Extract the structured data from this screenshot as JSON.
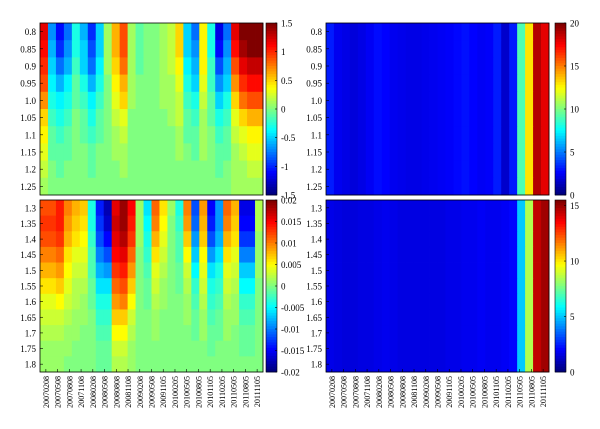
{
  "chart_data": [
    {
      "type": "heatmap",
      "panel": "top-left",
      "y_labels": [
        "0.8",
        "0.85",
        "0.9",
        "0.95",
        "1.0",
        "1.05",
        "1.1",
        "1.15",
        "1.2",
        "1.25"
      ],
      "x_labels": [],
      "colorbar": {
        "min": -1.5,
        "max": 1.5,
        "ticks": [
          "1.5",
          "1",
          "0.5",
          "0",
          "-0.5",
          "-1",
          "-1.5"
        ]
      },
      "colormap": "jet",
      "values": [
        [
          1.2,
          -0.7,
          -1.1,
          -0.8,
          -0.3,
          -0.6,
          -1.0,
          -0.5,
          0.1,
          0.6,
          0.9,
          0.1,
          -0.1,
          0.0,
          0.0,
          0.1,
          0.2,
          0.5,
          -0.5,
          -0.8,
          0.4,
          -0.3,
          -1.2,
          -0.8,
          1.2,
          1.5,
          1.6,
          1.6
        ],
        [
          1.1,
          -0.6,
          -1.0,
          -0.7,
          -0.3,
          -0.5,
          -0.9,
          -0.5,
          0.1,
          0.6,
          0.9,
          0.1,
          -0.1,
          0.0,
          0.0,
          0.1,
          0.2,
          0.5,
          -0.5,
          -0.7,
          0.4,
          -0.3,
          -1.1,
          -0.7,
          1.1,
          1.4,
          1.5,
          1.5
        ],
        [
          1.0,
          -0.5,
          -0.8,
          -0.6,
          -0.2,
          -0.5,
          -0.8,
          -0.4,
          0.1,
          0.5,
          0.8,
          0.1,
          -0.1,
          0.0,
          0.0,
          0.1,
          0.2,
          0.4,
          -0.4,
          -0.6,
          0.4,
          -0.2,
          -0.9,
          -0.6,
          0.9,
          1.2,
          1.3,
          1.3
        ],
        [
          0.9,
          -0.4,
          -0.6,
          -0.4,
          -0.1,
          -0.3,
          -0.6,
          -0.3,
          0.0,
          0.4,
          0.6,
          0.1,
          0.0,
          0.0,
          0.0,
          0.1,
          0.1,
          0.3,
          -0.3,
          -0.5,
          0.3,
          -0.2,
          -0.7,
          -0.5,
          0.7,
          1.0,
          1.1,
          1.1
        ],
        [
          0.7,
          -0.3,
          -0.4,
          -0.3,
          -0.1,
          -0.2,
          -0.4,
          -0.2,
          0.0,
          0.3,
          0.5,
          0.1,
          0.0,
          0.0,
          0.0,
          0.1,
          0.1,
          0.2,
          -0.2,
          -0.3,
          0.2,
          -0.1,
          -0.5,
          -0.3,
          0.5,
          0.8,
          0.9,
          0.9
        ],
        [
          0.5,
          -0.2,
          -0.3,
          -0.2,
          0.0,
          -0.1,
          -0.3,
          -0.1,
          0.0,
          0.2,
          0.3,
          0.0,
          0.0,
          0.0,
          0.0,
          0.0,
          0.1,
          0.2,
          -0.1,
          -0.2,
          0.1,
          -0.1,
          -0.3,
          -0.2,
          0.3,
          0.5,
          0.6,
          0.6
        ],
        [
          0.4,
          -0.1,
          -0.2,
          -0.1,
          0.0,
          -0.1,
          -0.2,
          -0.1,
          0.0,
          0.1,
          0.2,
          0.0,
          0.0,
          0.0,
          0.0,
          0.0,
          0.0,
          0.1,
          -0.1,
          -0.1,
          0.1,
          0.0,
          -0.2,
          -0.1,
          0.2,
          0.3,
          0.4,
          0.4
        ],
        [
          0.3,
          -0.1,
          -0.1,
          -0.1,
          0.0,
          0.0,
          -0.1,
          0.0,
          0.0,
          0.1,
          0.1,
          0.0,
          0.0,
          0.0,
          0.0,
          0.0,
          0.0,
          0.1,
          0.0,
          -0.1,
          0.1,
          0.0,
          -0.1,
          -0.1,
          0.1,
          0.2,
          0.3,
          0.3
        ],
        [
          0.2,
          0.0,
          -0.1,
          0.0,
          0.0,
          0.0,
          -0.1,
          0.0,
          0.0,
          0.0,
          0.1,
          0.0,
          0.0,
          0.0,
          0.0,
          0.0,
          0.0,
          0.0,
          0.0,
          0.0,
          0.0,
          0.0,
          -0.1,
          0.0,
          0.1,
          0.1,
          0.2,
          0.2
        ],
        [
          0.1,
          0.0,
          0.0,
          0.0,
          0.0,
          0.0,
          0.0,
          0.0,
          0.0,
          0.0,
          0.0,
          0.0,
          0.0,
          0.0,
          0.0,
          0.0,
          0.0,
          0.0,
          0.0,
          0.0,
          0.0,
          0.0,
          0.0,
          0.0,
          0.1,
          0.1,
          0.1,
          0.1
        ]
      ]
    },
    {
      "type": "heatmap",
      "panel": "top-right",
      "y_labels": [
        "0.8",
        "0.85",
        "0.9",
        "0.95",
        "1.0",
        "1.05",
        "1.1",
        "1.15",
        "1.2",
        "1.25"
      ],
      "x_labels": [],
      "colorbar": {
        "min": 0,
        "max": 20,
        "ticks": [
          "20",
          "15",
          "10",
          "5",
          "0"
        ]
      },
      "colormap": "jet",
      "column_profile": [
        3.0,
        2.2,
        2.0,
        1.8,
        2.0,
        2.3,
        2.7,
        2.5,
        2.2,
        2.1,
        2.0,
        2.0,
        2.1,
        2.2,
        2.3,
        2.4,
        2.6,
        2.8,
        2.5,
        2.3,
        2.4,
        3.0,
        1.5,
        3.0,
        9.0,
        13.0,
        19.0,
        18.0
      ],
      "row_factor": [
        1.0,
        1.0,
        1.0,
        1.0,
        1.0,
        1.0,
        1.0,
        1.0,
        1.0,
        1.0
      ]
    },
    {
      "type": "heatmap",
      "panel": "bottom-left",
      "y_labels": [
        "1.3",
        "1.35",
        "1.4",
        "1.45",
        "1.5",
        "1.55",
        "1.6",
        "1.65",
        "1.7",
        "1.75",
        "1.8"
      ],
      "x_labels": [
        "20070208",
        "20070508",
        "20070808",
        "20071108",
        "20080208",
        "20080508",
        "20080808",
        "20081108",
        "20090208",
        "20090508",
        "20091105",
        "20100205",
        "20100505",
        "20100805",
        "20101105",
        "20110205",
        "20110505",
        "20110805",
        "20111105"
      ],
      "colorbar": {
        "min": -0.02,
        "max": 0.02,
        "ticks": [
          "0.02",
          "0.015",
          "0.01",
          "0.005",
          "0",
          "-0.005",
          "-0.01",
          "-0.015",
          "-0.02"
        ]
      },
      "colormap": "jet",
      "values": [
        [
          0.012,
          0.012,
          0.014,
          0.01,
          0.008,
          0.007,
          -0.004,
          -0.014,
          -0.018,
          0.016,
          0.019,
          0.015,
          0.001,
          -0.006,
          0.011,
          0.006,
          0.001,
          -0.004,
          0.01,
          -0.012,
          0.009,
          -0.015,
          -0.009,
          0.011,
          0.008,
          -0.016,
          -0.016,
          0.002
        ],
        [
          0.013,
          0.013,
          0.014,
          0.009,
          0.007,
          0.006,
          -0.004,
          -0.013,
          -0.017,
          0.017,
          0.019,
          0.014,
          0.001,
          -0.005,
          0.01,
          0.005,
          0.0,
          -0.003,
          0.009,
          -0.011,
          0.008,
          -0.014,
          -0.009,
          0.01,
          0.007,
          -0.015,
          -0.015,
          0.002
        ],
        [
          0.012,
          0.012,
          0.013,
          0.008,
          0.006,
          0.005,
          -0.003,
          -0.012,
          -0.015,
          0.016,
          0.018,
          0.013,
          0.001,
          -0.004,
          0.008,
          0.004,
          0.0,
          -0.002,
          0.007,
          -0.009,
          0.007,
          -0.012,
          -0.008,
          0.008,
          0.006,
          -0.013,
          -0.013,
          0.001
        ],
        [
          0.01,
          0.01,
          0.011,
          0.006,
          0.004,
          0.004,
          -0.002,
          -0.01,
          -0.012,
          0.015,
          0.016,
          0.011,
          0.0,
          -0.003,
          0.006,
          0.003,
          0.0,
          -0.002,
          0.005,
          -0.007,
          0.005,
          -0.009,
          -0.006,
          0.006,
          0.004,
          -0.01,
          -0.01,
          0.001
        ],
        [
          0.008,
          0.008,
          0.009,
          0.005,
          0.003,
          0.003,
          -0.002,
          -0.008,
          -0.009,
          0.013,
          0.014,
          0.009,
          0.0,
          -0.002,
          0.004,
          0.002,
          0.0,
          -0.001,
          0.003,
          -0.005,
          0.004,
          -0.006,
          -0.004,
          0.004,
          0.003,
          -0.007,
          -0.007,
          0.001
        ],
        [
          0.006,
          0.006,
          0.007,
          0.004,
          0.002,
          0.002,
          -0.001,
          -0.006,
          -0.006,
          0.011,
          0.012,
          0.007,
          0.0,
          -0.001,
          0.003,
          0.001,
          0.0,
          -0.001,
          0.002,
          -0.003,
          0.003,
          -0.004,
          -0.003,
          0.003,
          0.002,
          -0.005,
          -0.005,
          0.0
        ],
        [
          0.004,
          0.004,
          0.005,
          0.003,
          0.002,
          0.001,
          -0.001,
          -0.004,
          -0.004,
          0.009,
          0.01,
          0.005,
          0.0,
          -0.001,
          0.002,
          0.001,
          0.0,
          0.0,
          0.001,
          -0.002,
          0.002,
          -0.003,
          -0.002,
          0.002,
          0.001,
          -0.003,
          -0.003,
          0.0
        ],
        [
          0.003,
          0.003,
          0.003,
          0.002,
          0.001,
          0.001,
          0.0,
          -0.003,
          -0.003,
          0.007,
          0.007,
          0.003,
          0.0,
          0.0,
          0.001,
          0.0,
          0.0,
          0.0,
          0.001,
          -0.001,
          0.001,
          -0.002,
          -0.001,
          0.001,
          0.001,
          -0.002,
          -0.002,
          0.0
        ],
        [
          0.002,
          0.002,
          0.002,
          0.001,
          0.001,
          0.0,
          0.0,
          -0.002,
          -0.002,
          0.005,
          0.005,
          0.002,
          0.0,
          0.0,
          0.001,
          0.0,
          0.0,
          0.0,
          0.0,
          -0.001,
          0.001,
          -0.001,
          -0.001,
          0.001,
          0.0,
          -0.001,
          -0.001,
          0.0
        ],
        [
          0.001,
          0.001,
          0.001,
          0.001,
          0.0,
          0.0,
          0.0,
          -0.001,
          -0.001,
          0.003,
          0.003,
          0.001,
          0.0,
          0.0,
          0.0,
          0.0,
          0.0,
          0.0,
          0.0,
          0.0,
          0.0,
          -0.001,
          0.0,
          0.0,
          0.0,
          -0.001,
          -0.001,
          0.0
        ],
        [
          0.001,
          0.001,
          0.001,
          0.0,
          0.0,
          0.0,
          0.0,
          -0.001,
          -0.001,
          0.002,
          0.002,
          0.001,
          0.0,
          0.0,
          0.0,
          0.0,
          0.0,
          0.0,
          0.0,
          0.0,
          0.0,
          0.0,
          0.0,
          0.0,
          0.0,
          0.0,
          0.0,
          0.0
        ]
      ]
    },
    {
      "type": "heatmap",
      "panel": "bottom-right",
      "y_labels": [
        "1.3",
        "1.35",
        "1.4",
        "1.45",
        "1.5",
        "1.55",
        "1.6",
        "1.65",
        "1.7",
        "1.75",
        "1.8"
      ],
      "x_labels": [
        "20070208",
        "20070508",
        "20070808",
        "20071108",
        "20080208",
        "20080508",
        "20080808",
        "20081108",
        "20090208",
        "20090508",
        "20091105",
        "20100205",
        "20100505",
        "20100805",
        "20101105",
        "20110205",
        "20110505",
        "20110805",
        "20111105"
      ],
      "colorbar": {
        "min": 0,
        "max": 15.5,
        "ticks": [
          "15",
          "10",
          "5",
          "0"
        ]
      },
      "colormap": "jet",
      "column_profile": [
        1.6,
        1.5,
        1.4,
        1.4,
        1.5,
        1.5,
        1.6,
        1.7,
        1.6,
        1.5,
        1.5,
        1.5,
        1.5,
        1.5,
        1.5,
        1.6,
        1.6,
        1.7,
        1.7,
        1.8,
        1.7,
        1.7,
        1.8,
        2.0,
        5.0,
        8.5,
        14.5,
        15.0
      ],
      "row_factor": [
        1.0,
        1.0,
        1.0,
        1.0,
        1.0,
        1.0,
        1.0,
        1.0,
        1.0,
        1.0,
        1.0
      ]
    }
  ]
}
